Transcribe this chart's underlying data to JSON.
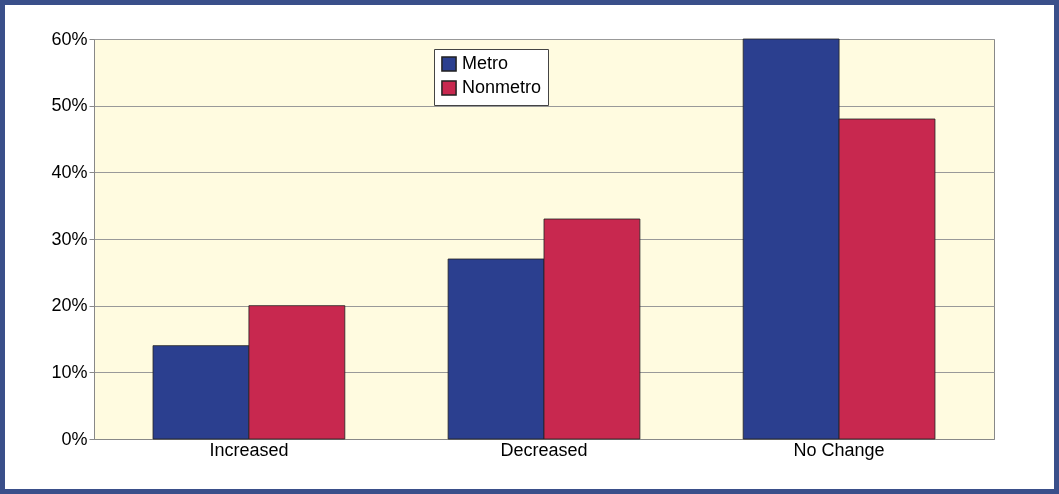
{
  "chart_data": {
    "type": "bar",
    "categories": [
      "Increased",
      "Decreased",
      "No Change"
    ],
    "series": [
      {
        "name": "Metro",
        "color": "#2b3f8f",
        "values": [
          14,
          27,
          60
        ]
      },
      {
        "name": "Nonmetro",
        "color": "#c8284f",
        "values": [
          20,
          33,
          48
        ]
      }
    ],
    "ylim": [
      0,
      60
    ],
    "yticks": [
      {
        "value": 0,
        "label": "0%"
      },
      {
        "value": 10,
        "label": "10%"
      },
      {
        "value": 20,
        "label": "20%"
      },
      {
        "value": 30,
        "label": "30%"
      },
      {
        "value": 40,
        "label": "40%"
      },
      {
        "value": 50,
        "label": "50%"
      },
      {
        "value": 60,
        "label": "60%"
      }
    ],
    "grid": "y",
    "legend": "top"
  }
}
